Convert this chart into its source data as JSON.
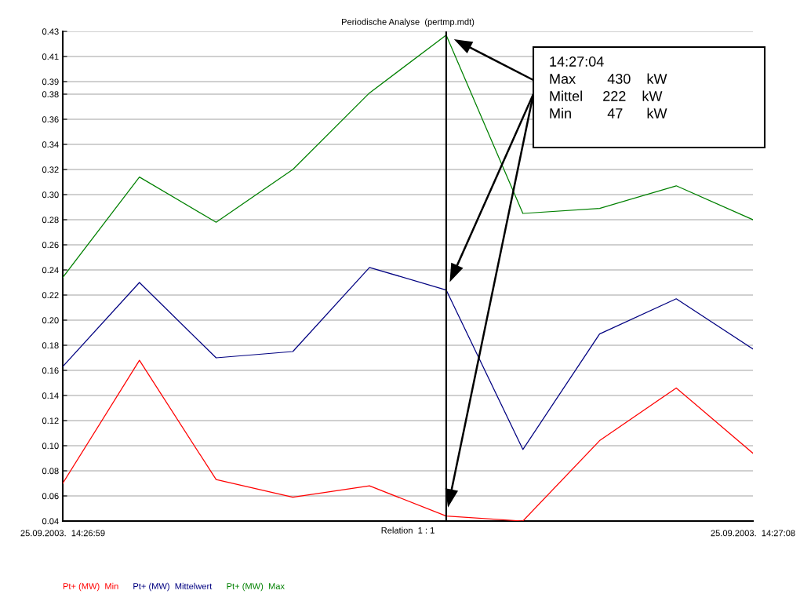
{
  "chart_data": {
    "type": "line",
    "title": "Periodische Analyse  (pertmp.mdt)",
    "xlabel": "Relation  1 : 1",
    "categories": [
      "25.09.2003.  14:26:59",
      null,
      null,
      null,
      null,
      null,
      null,
      null,
      null,
      "25.09.2003.  14:27:08"
    ],
    "ylim": [
      0.04,
      0.43
    ],
    "yticks": [
      0.04,
      0.06,
      0.08,
      {
        "value": 0.1,
        "label": "0.10"
      },
      0.12,
      0.14,
      0.16,
      0.18,
      {
        "value": 0.2,
        "label": "0.20"
      },
      0.22,
      0.24,
      0.26,
      0.28,
      {
        "value": 0.3,
        "label": "0.30"
      },
      0.32,
      0.34,
      0.36,
      0.38,
      0.39,
      0.41,
      0.43
    ],
    "series": [
      {
        "name": "Pt+ (MW)  Min",
        "color": "#ff0000",
        "values": [
          0.07,
          0.168,
          0.073,
          0.059,
          0.068,
          0.044,
          0.04,
          0.104,
          0.146,
          0.094
        ]
      },
      {
        "name": "Pt+ (MW)  Mittelwert",
        "color": "#000080",
        "values": [
          0.163,
          0.23,
          0.17,
          0.175,
          0.242,
          0.224,
          0.097,
          0.189,
          0.217,
          0.177
        ]
      },
      {
        "name": "Pt+ (MW)  Max",
        "color": "#008000",
        "values": [
          0.234,
          0.314,
          0.278,
          0.32,
          0.381,
          0.427,
          0.285,
          0.289,
          0.307,
          0.28
        ]
      }
    ],
    "annotations": [
      "14:27:04",
      "Max        430    kW",
      "Mittel     222    kW",
      "Min         47      kW"
    ],
    "grid": "y",
    "legend": "bottom",
    "marker": "none",
    "line_style": "solid"
  }
}
